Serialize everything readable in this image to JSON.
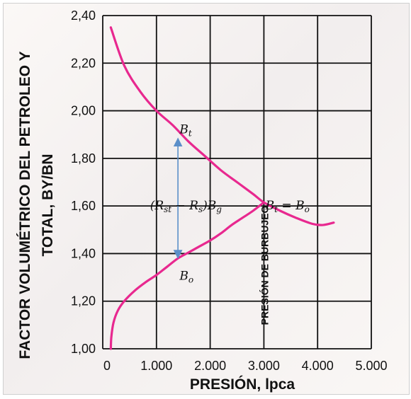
{
  "chart_data": {
    "type": "line",
    "xlabel": "PRESIÓN, lpca",
    "ylabel_line1": "FACTOR VOLUMÉTRICO DEL PETROLEO Y",
    "ylabel_line2": "TOTAL, BY/BN",
    "xlim": [
      0,
      5000
    ],
    "ylim": [
      1.0,
      2.4
    ],
    "x_ticks": [
      {
        "value": 0,
        "label": "0"
      },
      {
        "value": 1000,
        "label": "1.000"
      },
      {
        "value": 2000,
        "label": "2.000"
      },
      {
        "value": 3000,
        "label": "3.000"
      },
      {
        "value": 4000,
        "label": "4.000"
      },
      {
        "value": 5000,
        "label": "5.000"
      }
    ],
    "y_ticks": [
      {
        "value": 1.0,
        "label": "1,00"
      },
      {
        "value": 1.2,
        "label": "1,20"
      },
      {
        "value": 1.4,
        "label": "1,40"
      },
      {
        "value": 1.6,
        "label": "1,60"
      },
      {
        "value": 1.8,
        "label": "1,80"
      },
      {
        "value": 2.0,
        "label": "2,00"
      },
      {
        "value": 2.2,
        "label": "2,20"
      },
      {
        "value": 2.4,
        "label": "2,40"
      }
    ],
    "grid": true,
    "line_color": "#e8288f",
    "arrow_color": "#5b8fc9",
    "series": [
      {
        "x": [
          150,
          400,
          700,
          1000,
          1300,
          1600,
          1900,
          2200,
          2500,
          2800,
          3000,
          3300,
          3600,
          3900,
          4100,
          4300
        ],
        "y": [
          2.35,
          2.19,
          2.08,
          2.0,
          1.94,
          1.87,
          1.81,
          1.75,
          1.7,
          1.65,
          1.615,
          1.58,
          1.55,
          1.525,
          1.52,
          1.53
        ]
      },
      {
        "x": [
          150,
          160,
          200,
          280,
          400,
          600,
          800,
          1000,
          1200,
          1400,
          1600,
          1800,
          2000,
          2200,
          2400,
          2600,
          2800,
          3000
        ],
        "y": [
          1.0,
          1.05,
          1.11,
          1.16,
          1.2,
          1.245,
          1.28,
          1.31,
          1.345,
          1.38,
          1.405,
          1.43,
          1.455,
          1.485,
          1.52,
          1.55,
          1.58,
          1.615
        ]
      }
    ],
    "arrow": {
      "x": 1400,
      "y_top": 1.88,
      "y_bottom": 1.385
    },
    "annotations": {
      "bt": {
        "base": "B",
        "sub": "t",
        "x": 1430,
        "y": 1.905
      },
      "bo": {
        "base": "B",
        "sub": "o",
        "x": 1430,
        "y": 1.29
      },
      "diff": {
        "p1": "(R",
        "s1": "st",
        "p2": " − R",
        "s2": "s",
        "p3": ")B",
        "s3": "g",
        "x": 880,
        "y": 1.585
      },
      "bt_eq_bo": {
        "base1": "B",
        "sub1": "t",
        "eq": " = ",
        "base2": "B",
        "sub2": "o",
        "x": 3030,
        "y": 1.585
      }
    },
    "bubble_point": {
      "x": 3000,
      "label": "PRESIÓN DE BURBUJEO"
    }
  }
}
